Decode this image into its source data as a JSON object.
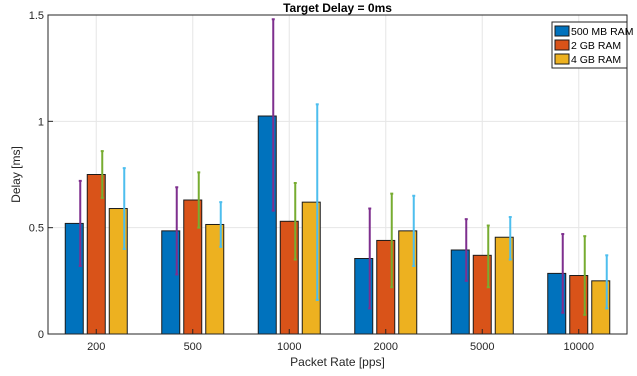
{
  "chart_data": {
    "type": "bar",
    "title": "Target Delay = 0ms",
    "xlabel": "Packet Rate [pps]",
    "ylabel": "Delay [ms]",
    "ylim": [
      0,
      1.5
    ],
    "yticks": [
      "0",
      "0.5",
      "1",
      "1.5"
    ],
    "grid": true,
    "legend_position": "top-right",
    "categories": [
      "200",
      "500",
      "1000",
      "2000",
      "5000",
      "10000"
    ],
    "series": [
      {
        "name": "500 MB RAM",
        "color": "#0072BD",
        "error_color": "#7E2F8E",
        "values": [
          0.52,
          0.485,
          1.025,
          0.355,
          0.395,
          0.285
        ],
        "error_low": [
          0.32,
          0.28,
          0.58,
          0.12,
          0.25,
          0.1
        ],
        "error_high": [
          0.72,
          0.69,
          1.48,
          0.59,
          0.54,
          0.47
        ]
      },
      {
        "name": "2 GB RAM",
        "color": "#D95319",
        "error_color": "#77AC30",
        "values": [
          0.75,
          0.63,
          0.53,
          0.44,
          0.37,
          0.275
        ],
        "error_low": [
          0.64,
          0.5,
          0.35,
          0.22,
          0.22,
          0.09
        ],
        "error_high": [
          0.86,
          0.76,
          0.71,
          0.66,
          0.51,
          0.46
        ]
      },
      {
        "name": "4 GB RAM",
        "color": "#EDB120",
        "error_color": "#4DBEEE",
        "values": [
          0.59,
          0.515,
          0.62,
          0.485,
          0.455,
          0.25
        ],
        "error_low": [
          0.4,
          0.41,
          0.16,
          0.32,
          0.35,
          0.12
        ],
        "error_high": [
          0.78,
          0.62,
          1.08,
          0.65,
          0.55,
          0.37
        ]
      }
    ]
  }
}
